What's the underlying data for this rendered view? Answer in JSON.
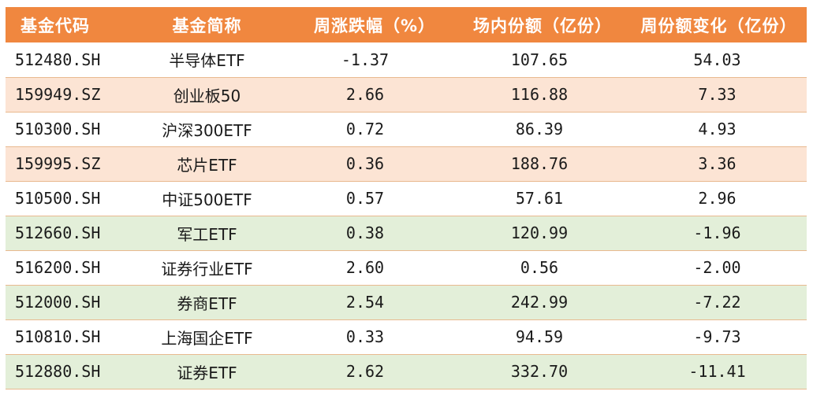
{
  "table": {
    "headers": {
      "code": "基金代码",
      "name": "基金简称",
      "weekly_change": "周涨跌幅（%）",
      "shares": "场内份额（亿份）",
      "share_change": "周份额变化（亿份）"
    },
    "row_colors": {
      "white": "#ffffff",
      "peach": "#fce4d4",
      "green": "#e3efd9",
      "header": "#f0873f"
    },
    "rows": [
      {
        "code": "512480.SH",
        "name": "半导体ETF",
        "weekly_change": "-1.37",
        "shares": "107.65",
        "share_change": "54.03",
        "tone": "white"
      },
      {
        "code": "159949.SZ",
        "name": "创业板50",
        "weekly_change": "2.66",
        "shares": "116.88",
        "share_change": "7.33",
        "tone": "peach"
      },
      {
        "code": "510300.SH",
        "name": "沪深300ETF",
        "weekly_change": "0.72",
        "shares": "86.39",
        "share_change": "4.93",
        "tone": "white"
      },
      {
        "code": "159995.SZ",
        "name": "芯片ETF",
        "weekly_change": "0.36",
        "shares": "188.76",
        "share_change": "3.36",
        "tone": "peach"
      },
      {
        "code": "510500.SH",
        "name": "中证500ETF",
        "weekly_change": "0.57",
        "shares": "57.61",
        "share_change": "2.96",
        "tone": "white"
      },
      {
        "code": "512660.SH",
        "name": "军工ETF",
        "weekly_change": "0.38",
        "shares": "120.99",
        "share_change": "-1.96",
        "tone": "green"
      },
      {
        "code": "516200.SH",
        "name": "证券行业ETF",
        "weekly_change": "2.60",
        "shares": "0.56",
        "share_change": "-2.00",
        "tone": "white"
      },
      {
        "code": "512000.SH",
        "name": "券商ETF",
        "weekly_change": "2.54",
        "shares": "242.99",
        "share_change": "-7.22",
        "tone": "green"
      },
      {
        "code": "510810.SH",
        "name": "上海国企ETF",
        "weekly_change": "0.33",
        "shares": "94.59",
        "share_change": "-9.73",
        "tone": "white"
      },
      {
        "code": "512880.SH",
        "name": "证券ETF",
        "weekly_change": "2.62",
        "shares": "332.70",
        "share_change": "-11.41",
        "tone": "green"
      }
    ]
  }
}
